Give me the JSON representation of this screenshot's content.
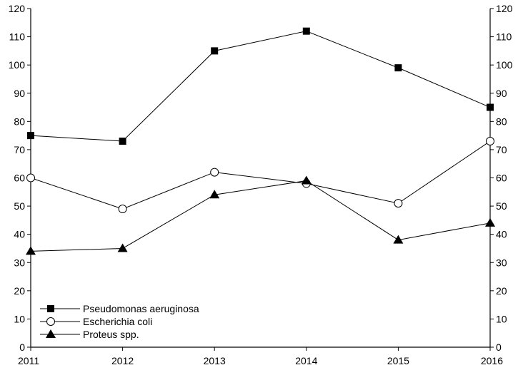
{
  "chart_data": {
    "type": "line",
    "title": "",
    "xlabel": "",
    "ylabel": "",
    "categories": [
      "2011",
      "2012",
      "2013",
      "2014",
      "2015",
      "2016"
    ],
    "ylim": [
      0,
      120
    ],
    "yticks": [
      0,
      10,
      20,
      30,
      40,
      50,
      60,
      70,
      80,
      90,
      100,
      110,
      120
    ],
    "y_axis_mirrored_right": true,
    "grid": false,
    "legend_position": "bottom-left",
    "series": [
      {
        "name": "Pseudomonas aeruginosa",
        "marker": "filled-square",
        "color": "#000000",
        "values": [
          75,
          73,
          105,
          112,
          99,
          85
        ]
      },
      {
        "name": "Escherichia coli",
        "marker": "open-circle",
        "color": "#000000",
        "values": [
          60,
          49,
          62,
          58,
          51,
          73
        ]
      },
      {
        "name": "Proteus spp.",
        "marker": "filled-triangle",
        "color": "#000000",
        "values": [
          34,
          35,
          54,
          59,
          38,
          44
        ]
      }
    ]
  }
}
